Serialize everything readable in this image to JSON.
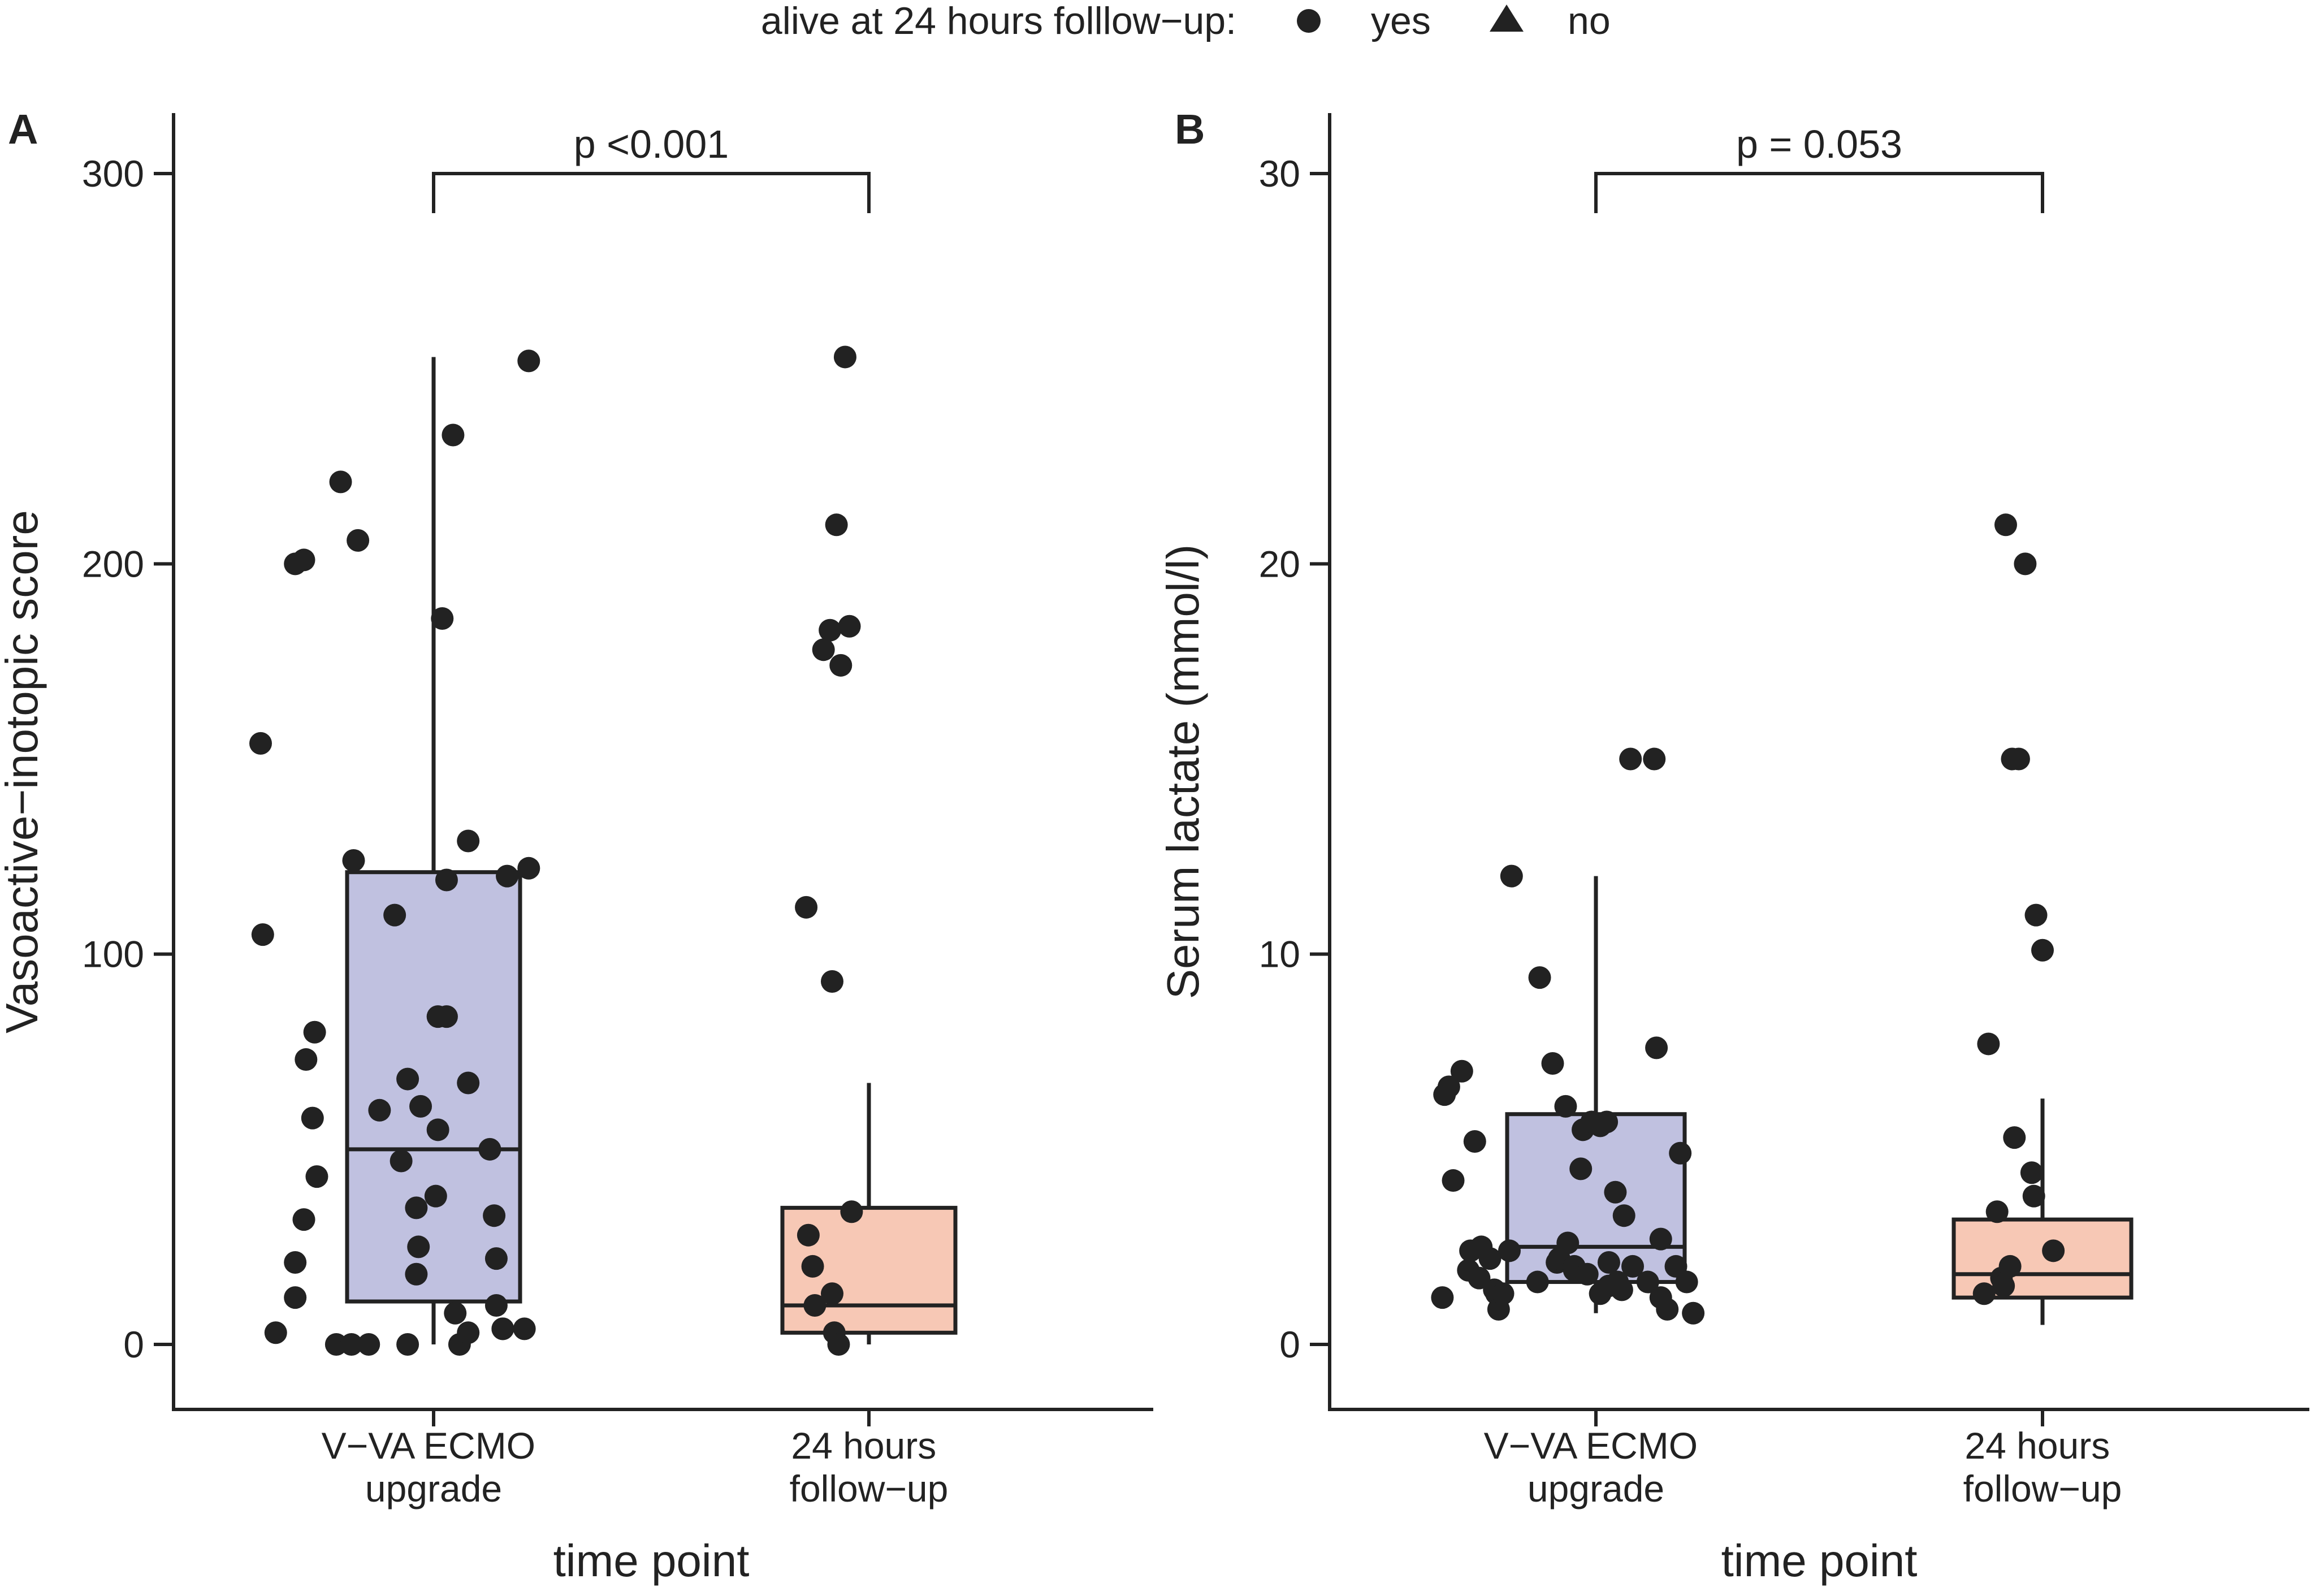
{
  "legend": {
    "title": "alive at 24 hours folllow−up:",
    "items": [
      {
        "label": "yes",
        "shape": "circle"
      },
      {
        "label": "no",
        "shape": "triangle"
      }
    ]
  },
  "colors": {
    "box_upgrade": "#c0c1e0",
    "box_followup": "#f7c8b5",
    "ink": "#222222"
  },
  "chart_data": [
    {
      "type": "box",
      "panel_tag": "A",
      "title": "",
      "xlabel": "time point",
      "ylabel": "Vasoactive−inotopic score",
      "categories": [
        "V−VA ECMO\nupgrade",
        "24 hours\nfollow−up"
      ],
      "ylim": [
        -15,
        315
      ],
      "yticks": [
        0,
        100,
        200,
        300
      ],
      "pvalue": "p <0.001",
      "pvalue_y": 300,
      "boxes": [
        {
          "q1": 11,
          "median": 50,
          "q3": 121,
          "whisker_low": 0,
          "whisker_high": 253
        },
        {
          "q1": 3,
          "median": 10,
          "q3": 35,
          "whisker_low": 0,
          "whisker_high": 67
        }
      ],
      "series": [
        {
          "name": "yes",
          "shape": "circle",
          "points": [
            [
              -0.8,
              154
            ],
            [
              -0.79,
              105
            ],
            [
              -0.73,
              3
            ],
            [
              -0.64,
              200
            ],
            [
              -0.6,
              201
            ],
            [
              -0.59,
              73
            ],
            [
              -0.56,
              58
            ],
            [
              -0.54,
              43
            ],
            [
              -0.55,
              80
            ],
            [
              -0.64,
              21
            ],
            [
              -0.64,
              12
            ],
            [
              -0.6,
              32
            ],
            [
              -0.43,
              221
            ],
            [
              -0.35,
              206
            ],
            [
              -0.45,
              0
            ],
            [
              -0.38,
              0
            ],
            [
              -0.3,
              0
            ],
            [
              -0.12,
              0
            ],
            [
              -0.37,
              124
            ],
            [
              -0.25,
              60
            ],
            [
              -0.18,
              110
            ],
            [
              -0.12,
              68
            ],
            [
              -0.06,
              61
            ],
            [
              -0.08,
              18
            ],
            [
              -0.15,
              47
            ],
            [
              -0.08,
              35
            ],
            [
              0.01,
              38
            ],
            [
              0.02,
              55
            ],
            [
              0.02,
              84
            ],
            [
              0.06,
              84
            ],
            [
              0.06,
              119
            ],
            [
              -0.07,
              25
            ],
            [
              0.04,
              186
            ],
            [
              0.1,
              8
            ],
            [
              0.12,
              0
            ],
            [
              0.09,
              233
            ],
            [
              0.16,
              129
            ],
            [
              0.16,
              67
            ],
            [
              0.16,
              3
            ],
            [
              0.26,
              50
            ],
            [
              0.28,
              33
            ],
            [
              0.29,
              10
            ],
            [
              0.32,
              4
            ],
            [
              0.29,
              22
            ],
            [
              0.34,
              120
            ],
            [
              0.32,
              4
            ],
            [
              0.42,
              4
            ],
            [
              0.44,
              122
            ],
            [
              0.44,
              252
            ],
            [
              0.48,
              112
            ],
            [
              0.49,
              28
            ],
            [
              0.51,
              20
            ],
            [
              0.52,
              10
            ],
            [
              0.56,
              178
            ],
            [
              0.59,
              183
            ],
            [
              0.6,
              93
            ],
            [
              0.6,
              13
            ],
            [
              0.62,
              210
            ],
            [
              0.61,
              3
            ],
            [
              0.64,
              174
            ],
            [
              0.68,
              184
            ],
            [
              0.66,
              253
            ],
            [
              0.63,
              0
            ],
            [
              0.69,
              34
            ]
          ]
        },
        {
          "name": "no",
          "shape": "triangle",
          "points": []
        }
      ]
    },
    {
      "type": "box",
      "panel_tag": "B",
      "title": "",
      "xlabel": "time point",
      "ylabel": "Serum lactate (mmol/l)",
      "categories": [
        "V−VA ECMO\nupgrade",
        "24 hours\nfollow−up"
      ],
      "ylim": [
        -1.5,
        31.5
      ],
      "yticks": [
        0,
        10,
        20,
        30
      ],
      "pvalue": "p = 0.053",
      "pvalue_y": 30,
      "boxes": [
        {
          "q1": 1.6,
          "median": 2.5,
          "q3": 5.9,
          "whisker_low": 0.8,
          "whisker_high": 12.0
        },
        {
          "q1": 1.2,
          "median": 1.8,
          "q3": 3.2,
          "whisker_low": 0.5,
          "whisker_high": 6.3
        }
      ],
      "series": [
        {
          "name": "yes",
          "shape": "circle",
          "points": [
            [
              -0.71,
              1.2
            ],
            [
              -0.7,
              6.4
            ],
            [
              -0.68,
              6.6
            ],
            [
              -0.66,
              4.2
            ],
            [
              -0.62,
              7.0
            ],
            [
              -0.59,
              1.9
            ],
            [
              -0.58,
              2.4
            ],
            [
              -0.56,
              5.2
            ],
            [
              -0.54,
              1.7
            ],
            [
              -0.53,
              2.5
            ],
            [
              -0.49,
              2.2
            ],
            [
              -0.46,
              1.3
            ],
            [
              -0.47,
              1.4
            ],
            [
              -0.45,
              0.9
            ],
            [
              -0.43,
              1.3
            ],
            [
              -0.4,
              2.4
            ],
            [
              -0.39,
              12.0
            ],
            [
              -0.26,
              9.4
            ],
            [
              -0.27,
              1.6
            ],
            [
              -0.2,
              7.2
            ],
            [
              -0.18,
              2.1
            ],
            [
              -0.17,
              2.2
            ],
            [
              -0.14,
              6.1
            ],
            [
              -0.13,
              2.6
            ],
            [
              -0.1,
              1.9
            ],
            [
              -0.1,
              2.0
            ],
            [
              -0.07,
              4.5
            ],
            [
              -0.06,
              5.5
            ],
            [
              -0.04,
              1.8
            ],
            [
              -0.02,
              5.7
            ],
            [
              0.02,
              5.6
            ],
            [
              0.02,
              1.3
            ],
            [
              0.05,
              5.7
            ],
            [
              0.06,
              1.5
            ],
            [
              0.06,
              2.1
            ],
            [
              0.09,
              3.9
            ],
            [
              0.1,
              1.6
            ],
            [
              0.12,
              1.4
            ],
            [
              0.13,
              3.3
            ],
            [
              0.16,
              15.0
            ],
            [
              0.17,
              2.0
            ],
            [
              0.24,
              1.6
            ],
            [
              0.28,
              7.6
            ],
            [
              0.27,
              15.0
            ],
            [
              0.3,
              2.7
            ],
            [
              0.3,
              1.2
            ],
            [
              0.33,
              0.9
            ],
            [
              0.37,
              2.0
            ],
            [
              0.39,
              4.9
            ],
            [
              0.42,
              1.6
            ],
            [
              0.45,
              0.8
            ],
            [
              0.5,
              1.3
            ],
            [
              0.52,
              7.7
            ],
            [
              0.56,
              3.4
            ],
            [
              0.58,
              1.7
            ],
            [
              0.59,
              1.5
            ],
            [
              0.6,
              21.0
            ],
            [
              0.62,
              2.0
            ],
            [
              0.63,
              15.0
            ],
            [
              0.64,
              5.3
            ],
            [
              0.66,
              15.0
            ],
            [
              0.69,
              20.0
            ],
            [
              0.72,
              4.4
            ],
            [
              0.73,
              3.8
            ],
            [
              0.74,
              11.0
            ],
            [
              0.77,
              10.1
            ],
            [
              0.82,
              2.4
            ]
          ]
        },
        {
          "name": "no",
          "shape": "triangle",
          "points": []
        }
      ]
    }
  ]
}
